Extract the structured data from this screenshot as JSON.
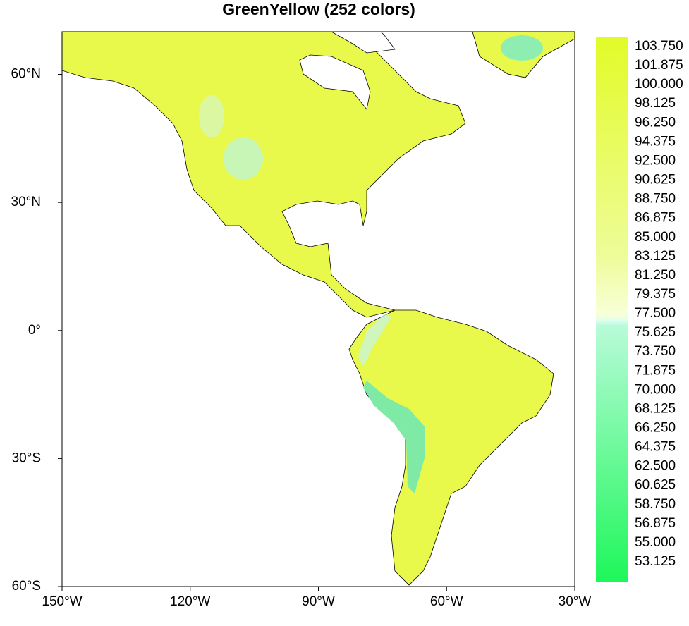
{
  "title": "GreenYellow (252 colors)",
  "map": {
    "xlim": [
      -150,
      -30
    ],
    "ylim": [
      -60,
      70
    ],
    "xticks": [
      {
        "value": -150,
        "label": "150°W"
      },
      {
        "value": -120,
        "label": "120°W"
      },
      {
        "value": -90,
        "label": "90°W"
      },
      {
        "value": -60,
        "label": "60°W"
      },
      {
        "value": -30,
        "label": "30°W"
      }
    ],
    "yticks": [
      {
        "value": 60,
        "label": "60°N"
      },
      {
        "value": 30,
        "label": "30°N"
      },
      {
        "value": 0,
        "label": "0°"
      },
      {
        "value": -30,
        "label": "30°S"
      },
      {
        "value": -60,
        "label": "60°S"
      }
    ]
  },
  "colorbar": {
    "ticks": [
      {
        "value": 103.75,
        "label": "103.750"
      },
      {
        "value": 101.875,
        "label": "101.875"
      },
      {
        "value": 100,
        "label": "100.000"
      },
      {
        "value": 98.125,
        "label": "98.125"
      },
      {
        "value": 96.25,
        "label": "96.250"
      },
      {
        "value": 94.375,
        "label": "94.375"
      },
      {
        "value": 92.5,
        "label": "92.500"
      },
      {
        "value": 90.625,
        "label": "90.625"
      },
      {
        "value": 88.75,
        "label": "88.750"
      },
      {
        "value": 86.875,
        "label": "86.875"
      },
      {
        "value": 85,
        "label": "85.000"
      },
      {
        "value": 83.125,
        "label": "83.125"
      },
      {
        "value": 81.25,
        "label": "81.250"
      },
      {
        "value": 79.375,
        "label": "79.375"
      },
      {
        "value": 77.5,
        "label": "77.500"
      },
      {
        "value": 75.625,
        "label": "75.625"
      },
      {
        "value": 73.75,
        "label": "73.750"
      },
      {
        "value": 71.875,
        "label": "71.875"
      },
      {
        "value": 70,
        "label": "70.000"
      },
      {
        "value": 68.125,
        "label": "68.125"
      },
      {
        "value": 66.25,
        "label": "66.250"
      },
      {
        "value": 64.375,
        "label": "64.375"
      },
      {
        "value": 62.5,
        "label": "62.500"
      },
      {
        "value": 60.625,
        "label": "60.625"
      },
      {
        "value": 58.75,
        "label": "58.750"
      },
      {
        "value": 56.875,
        "label": "56.875"
      },
      {
        "value": 55,
        "label": "55.000"
      },
      {
        "value": 53.125,
        "label": "53.125"
      }
    ]
  }
}
